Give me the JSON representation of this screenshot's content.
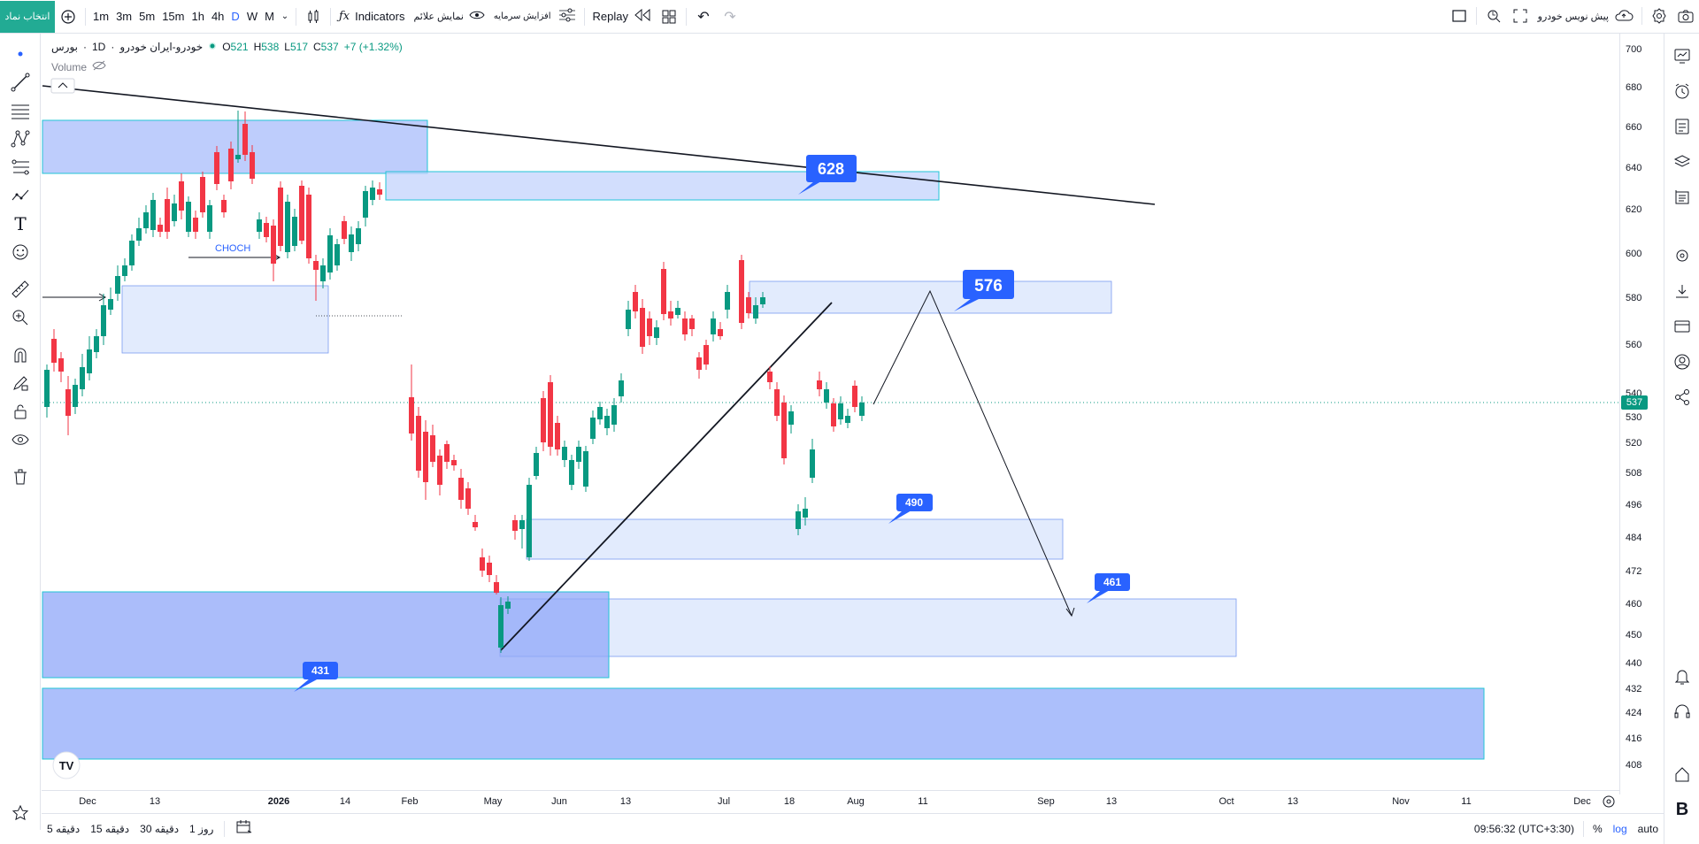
{
  "toolbar": {
    "symbol_button": "انتخاب نماد",
    "timeframes": [
      "1m",
      "3m",
      "5m",
      "15m",
      "1h",
      "4h",
      "D",
      "W",
      "M"
    ],
    "active_timeframe": "D",
    "indicators_label": "Indicators",
    "show_signals_label": "نمایش علائم",
    "capital_increase_label": "افزایش سرمایه",
    "replay_label": "Replay",
    "pre_open_label": "پیش نویس خودرو"
  },
  "legend": {
    "exchange": "بورس",
    "timeframe": "1D",
    "symbol": "خودرو-ایران خودرو",
    "open_label": "O",
    "open": "521",
    "high_label": "H",
    "high": "538",
    "low_label": "L",
    "low": "517",
    "close_label": "C",
    "close": "537",
    "change": "+7 (+1.32%)",
    "volume_label": "Volume"
  },
  "current_price": "537",
  "price_ticks": [
    "700",
    "680",
    "660",
    "640",
    "620",
    "600",
    "580",
    "560",
    "540",
    "530",
    "520",
    "508",
    "496",
    "484",
    "472",
    "460",
    "450",
    "440",
    "432",
    "424",
    "416",
    "408"
  ],
  "time_ticks": [
    "Dec",
    "13",
    "2026",
    "14",
    "Feb",
    "May",
    "Jun",
    "13",
    "Jul",
    "18",
    "Aug",
    "11",
    "Sep",
    "13",
    "Oct",
    "13",
    "Nov",
    "11",
    "Dec"
  ],
  "annotations": {
    "choch": "CHOCH",
    "label_628": "628",
    "label_576": "576",
    "label_490": "490",
    "label_461": "461",
    "label_431": "431"
  },
  "bottombar": {
    "ranges": [
      "5 دقیقه",
      "15 دقیقه",
      "30 دقیقه",
      "1 روز"
    ],
    "clock": "09:56:32 (UTC+3:30)",
    "percent": "%",
    "log": "log",
    "auto": "auto"
  },
  "colors": {
    "up": "#089981",
    "down": "#f23645",
    "zone_strong": "#a8bcfb",
    "zone_light": "#dbe6fd",
    "label_blue": "#2962ff"
  }
}
